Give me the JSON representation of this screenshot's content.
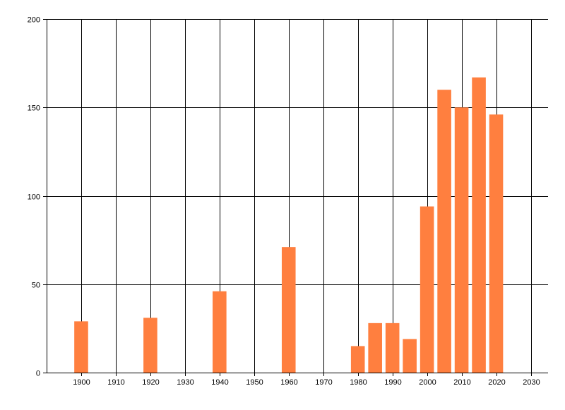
{
  "chart_data": {
    "type": "bar",
    "title": "",
    "xlabel": "",
    "ylabel": "",
    "xlim": [
      1890,
      2035
    ],
    "ylim": [
      0,
      200
    ],
    "xticks": [
      1900,
      1910,
      1920,
      1930,
      1940,
      1950,
      1960,
      1970,
      1980,
      1990,
      2000,
      2010,
      2020,
      2030
    ],
    "yticks": [
      0,
      50,
      100,
      150,
      200
    ],
    "grid": true,
    "bar_color": "#ff7f3f",
    "bar_width_years": 4,
    "x": [
      1900,
      1920,
      1940,
      1960,
      1980,
      1985,
      1990,
      1995,
      2000,
      2005,
      2010,
      2015,
      2020
    ],
    "values": [
      29,
      31,
      46,
      71,
      15,
      28,
      28,
      19,
      94,
      160,
      150,
      167,
      146
    ]
  }
}
